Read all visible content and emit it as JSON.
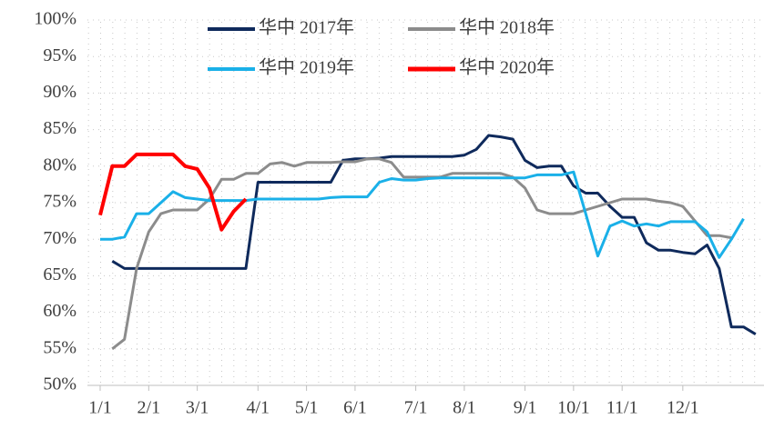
{
  "chart_data": {
    "type": "line",
    "categories": [
      "1/1",
      null,
      null,
      null,
      "2/1",
      null,
      null,
      null,
      "3/1",
      null,
      null,
      null,
      null,
      "4/1",
      null,
      null,
      null,
      "5/1",
      null,
      null,
      null,
      "6/1",
      null,
      null,
      null,
      null,
      "7/1",
      null,
      null,
      null,
      "8/1",
      null,
      null,
      null,
      null,
      "9/1",
      null,
      null,
      null,
      "10/1",
      null,
      null,
      null,
      "11/1",
      null,
      null,
      null,
      null,
      "12/1",
      null,
      null,
      null,
      null,
      null,
      null
    ],
    "series": [
      {
        "name": "华中 2017年",
        "color": "#0f2a5c",
        "values": [
          null,
          67,
          66,
          66,
          66,
          66,
          66,
          66,
          66,
          66,
          66,
          66,
          66,
          77.8,
          77.8,
          77.8,
          77.8,
          77.8,
          77.8,
          77.8,
          80.8,
          81,
          81,
          81.1,
          81.3,
          81.3,
          81.3,
          81.3,
          81.3,
          81.3,
          81.5,
          82.3,
          84.2,
          84,
          83.7,
          80.8,
          79.8,
          80,
          80,
          77.3,
          76.3,
          76.3,
          74.5,
          73,
          73,
          69.5,
          68.5,
          68.5,
          68.2,
          68,
          69.2,
          66,
          58,
          58,
          57
        ]
      },
      {
        "name": "华中 2018年",
        "color": "#8c8c8c",
        "values": [
          null,
          55,
          56.3,
          66,
          71,
          73.5,
          74,
          74,
          74,
          75.5,
          78.2,
          78.2,
          79,
          79,
          80.3,
          80.5,
          80,
          80.5,
          80.5,
          80.5,
          80.6,
          80.6,
          81,
          81,
          80.5,
          78.5,
          78.5,
          78.5,
          78.5,
          79,
          79,
          79,
          79,
          79,
          78.5,
          77,
          74,
          73.5,
          73.5,
          73.5,
          74,
          74.5,
          75,
          75.5,
          75.5,
          75.5,
          75.2,
          75,
          74.5,
          72.5,
          70.5,
          70.5,
          70.2,
          null,
          null
        ]
      },
      {
        "name": "华中 2019年",
        "color": "#1ab0e8",
        "values": [
          70,
          70,
          70.3,
          73.5,
          73.5,
          75,
          76.5,
          75.7,
          75.5,
          75.3,
          75.3,
          75.3,
          75.3,
          75.5,
          75.5,
          75.5,
          75.5,
          75.5,
          75.5,
          75.7,
          75.8,
          75.8,
          75.8,
          77.8,
          78.3,
          78.1,
          78.1,
          78.3,
          78.4,
          78.4,
          78.4,
          78.4,
          78.4,
          78.4,
          78.4,
          78.4,
          78.8,
          78.8,
          78.8,
          79.2,
          73.5,
          67.7,
          71.8,
          72.5,
          71.8,
          72.1,
          71.8,
          72.4,
          72.4,
          72.4,
          71,
          67.5,
          70,
          72.8,
          null
        ]
      },
      {
        "name": "华中 2020年",
        "color": "#ff0000",
        "values": [
          73.3,
          80,
          80,
          81.6,
          81.6,
          81.6,
          81.6,
          80,
          79.6,
          77,
          71.3,
          73.8,
          75.5,
          null,
          null,
          null,
          null,
          null,
          null,
          null,
          null,
          null,
          null,
          null,
          null,
          null,
          null,
          null,
          null,
          null,
          null,
          null,
          null,
          null,
          null,
          null,
          null,
          null,
          null,
          null,
          null,
          null,
          null,
          null,
          null,
          null,
          null,
          null,
          null,
          null,
          null,
          null,
          null,
          null,
          null
        ]
      }
    ],
    "ylim": [
      50,
      100
    ],
    "yticks": [
      {
        "value": 50,
        "label": "50%"
      },
      {
        "value": 55,
        "label": "55%"
      },
      {
        "value": 60,
        "label": "60%"
      },
      {
        "value": 65,
        "label": "65%"
      },
      {
        "value": 70,
        "label": "70%"
      },
      {
        "value": 75,
        "label": "75%"
      },
      {
        "value": 80,
        "label": "80%"
      },
      {
        "value": 85,
        "label": "85%"
      },
      {
        "value": 90,
        "label": "90%"
      },
      {
        "value": 95,
        "label": "95%"
      },
      {
        "value": 100,
        "label": "100%"
      }
    ],
    "grid": true,
    "legend": "top"
  }
}
